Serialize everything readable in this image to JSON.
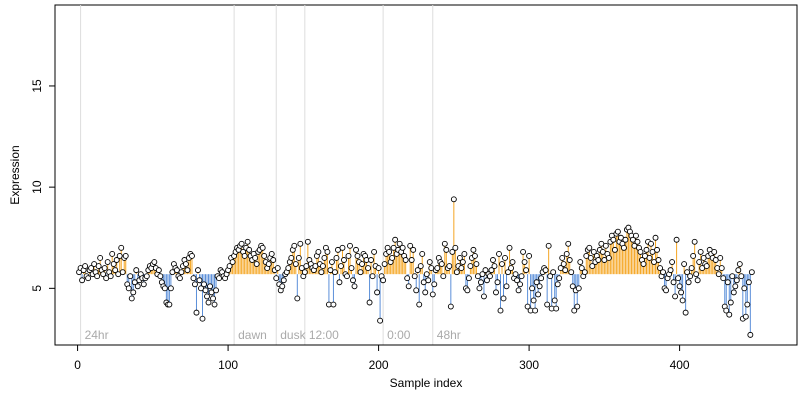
{
  "chart_data": {
    "type": "scatter",
    "title": "",
    "xlabel": "Sample index",
    "ylabel": "Expression",
    "xlim": [
      -15,
      478
    ],
    "ylim": [
      2.2,
      19
    ],
    "x_ticks": [
      0,
      100,
      200,
      300,
      400
    ],
    "y_ticks": [
      5,
      10,
      15
    ],
    "baseline": 5.7,
    "colors": {
      "above": "#f5a623",
      "below": "#5b8fd9",
      "point_edge": "#000000",
      "marker_line": "#dddddd",
      "marker_text": "#aaaaaa",
      "axis": "#000000"
    },
    "grid": false,
    "legend": "none",
    "markers": [
      {
        "x": 2,
        "label": "24hr"
      },
      {
        "x": 104,
        "label": "dawn"
      },
      {
        "x": 132,
        "label": "dusk"
      },
      {
        "x": 151,
        "label": "12:00"
      },
      {
        "x": 203,
        "label": "0:00"
      },
      {
        "x": 236,
        "label": "48hr"
      }
    ],
    "x_start": 1,
    "y": [
      5.8,
      6.0,
      5.4,
      5.9,
      6.1,
      5.6,
      5.5,
      5.9,
      6.0,
      5.7,
      6.2,
      5.8,
      5.6,
      6.1,
      6.5,
      5.9,
      5.7,
      6.0,
      5.5,
      6.3,
      5.8,
      5.6,
      6.7,
      6.2,
      5.9,
      6.4,
      5.7,
      6.6,
      7.0,
      5.8,
      6.5,
      6.6,
      5.2,
      5.0,
      5.6,
      4.5,
      4.8,
      5.3,
      5.9,
      5.1,
      5.4,
      5.7,
      5.5,
      5.2,
      5.5,
      5.6,
      5.9,
      6.1,
      6.0,
      6.2,
      6.3,
      6.0,
      5.7,
      5.9,
      5.6,
      5.3,
      5.1,
      5.0,
      4.3,
      4.2,
      4.2,
      5.0,
      5.8,
      6.2,
      6.0,
      5.9,
      5.6,
      5.5,
      5.8,
      6.1,
      6.4,
      6.2,
      5.9,
      6.5,
      6.7,
      6.6,
      5.5,
      5.2,
      3.8,
      5.9,
      5.4,
      5.0,
      3.5,
      5.2,
      4.9,
      4.6,
      4.3,
      5.1,
      4.8,
      4.5,
      4.2,
      4.9,
      5.6,
      5.5,
      5.9,
      5.8,
      5.6,
      5.5,
      5.7,
      5.9,
      6.1,
      6.5,
      6.3,
      6.6,
      6.8,
      7.0,
      6.9,
      7.1,
      7.2,
      6.8,
      6.6,
      7.0,
      7.3,
      6.9,
      6.6,
      6.4,
      6.7,
      6.5,
      6.2,
      6.8,
      6.9,
      7.1,
      7.0,
      6.6,
      6.3,
      6.0,
      6.2,
      6.5,
      6.7,
      6.4,
      5.9,
      5.5,
      6.0,
      5.2,
      4.9,
      5.1,
      5.4,
      5.7,
      5.8,
      6.0,
      6.3,
      6.5,
      6.9,
      7.1,
      6.2,
      4.5,
      6.5,
      7.2,
      6.0,
      5.6,
      5.8,
      6.1,
      7.3,
      6.4,
      6.2,
      6.0,
      5.9,
      6.1,
      6.6,
      6.8,
      6.2,
      5.8,
      6.1,
      6.5,
      7.0,
      6.8,
      4.2,
      5.9,
      6.3,
      4.2,
      5.8,
      6.5,
      6.9,
      5.3,
      6.1,
      7.0,
      6.4,
      5.7,
      5.6,
      6.6,
      7.1,
      6.0,
      5.4,
      5.1,
      6.9,
      6.6,
      6.3,
      5.8,
      6.2,
      6.7,
      6.6,
      6.4,
      6.0,
      4.3,
      6.4,
      5.6,
      6.8,
      6.1,
      4.8,
      6.0,
      3.4,
      5.6,
      5.4,
      6.2,
      6.7,
      7.0,
      6.8,
      6.3,
      6.5,
      7.0,
      7.4,
      6.7,
      6.9,
      7.2,
      6.8,
      7.0,
      6.6,
      6.4,
      5.5,
      5.1,
      7.1,
      6.4,
      6.9,
      5.6,
      4.9,
      5.9,
      4.2,
      6.1,
      6.7,
      5.3,
      4.8,
      5.7,
      5.4,
      6.3,
      6.0,
      4.7,
      5.2,
      5.9,
      6.0,
      6.5,
      6.3,
      6.2,
      5.6,
      7.2,
      6.9,
      6.0,
      6.1,
      4.1,
      6.8,
      9.4,
      7.0,
      5.8,
      6.1,
      6.5,
      6.0,
      6.3,
      6.7,
      5.0,
      4.9,
      5.5,
      6.1,
      6.5,
      6.9,
      6.6,
      6.2,
      5.6,
      5.0,
      5.3,
      5.7,
      4.6,
      5.9,
      5.4,
      5.7,
      5.6,
      5.9,
      6.4,
      6.1,
      4.8,
      5.3,
      6.7,
      3.9,
      6.2,
      4.5,
      6.5,
      5.1,
      5.8,
      7.0,
      6.0,
      6.3,
      5.5,
      5.7,
      5.4,
      4.9,
      5.2,
      5.6,
      6.8,
      6.3,
      5.9,
      4.1,
      6.6,
      3.9,
      5.0,
      4.4,
      3.9,
      5.3,
      4.7,
      5.1,
      5.5,
      5.8,
      6.0,
      5.9,
      4.2,
      7.1,
      5.6,
      4.0,
      5.8,
      4.4,
      4.0,
      5.2,
      5.5,
      6.0,
      6.5,
      6.2,
      5.9,
      6.7,
      7.2,
      6.4,
      5.8,
      5.1,
      3.9,
      4.9,
      4.1,
      5.0,
      6.3,
      6.0,
      5.6,
      5.8,
      6.6,
      6.9,
      7.0,
      6.5,
      6.1,
      6.8,
      6.3,
      6.6,
      6.4,
      6.9,
      7.2,
      6.8,
      6.4,
      7.1,
      6.7,
      6.5,
      7.3,
      7.6,
      7.4,
      6.9,
      7.7,
      7.8,
      7.3,
      7.5,
      7.2,
      7.0,
      7.4,
      7.9,
      8.0,
      7.8,
      7.6,
      7.4,
      7.1,
      7.6,
      7.3,
      7.0,
      6.8,
      6.4,
      6.2,
      6.6,
      6.9,
      7.3,
      6.5,
      7.2,
      6.8,
      6.3,
      7.5,
      6.9,
      6.4,
      6.0,
      5.6,
      5.8,
      5.0,
      4.9,
      5.5,
      5.7,
      5.9,
      6.3,
      5.3,
      4.6,
      7.4,
      5.5,
      5.1,
      4.8,
      4.4,
      6.2,
      3.8,
      5.8,
      5.3,
      5.6,
      6.0,
      6.6,
      7.3,
      5.7,
      5.4,
      6.3,
      6.8,
      6.0,
      6.5,
      6.2,
      6.1,
      6.6,
      6.9,
      6.7,
      6.5,
      6.8,
      6.4,
      6.0,
      5.7,
      6.5,
      6.0,
      5.5,
      4.1,
      3.9,
      5.3,
      3.7,
      4.3,
      5.6,
      4.8,
      5.1,
      5.4,
      5.9,
      6.2,
      5.6,
      3.5,
      5.0,
      3.6,
      4.2,
      5.3,
      2.7,
      5.8
    ]
  }
}
